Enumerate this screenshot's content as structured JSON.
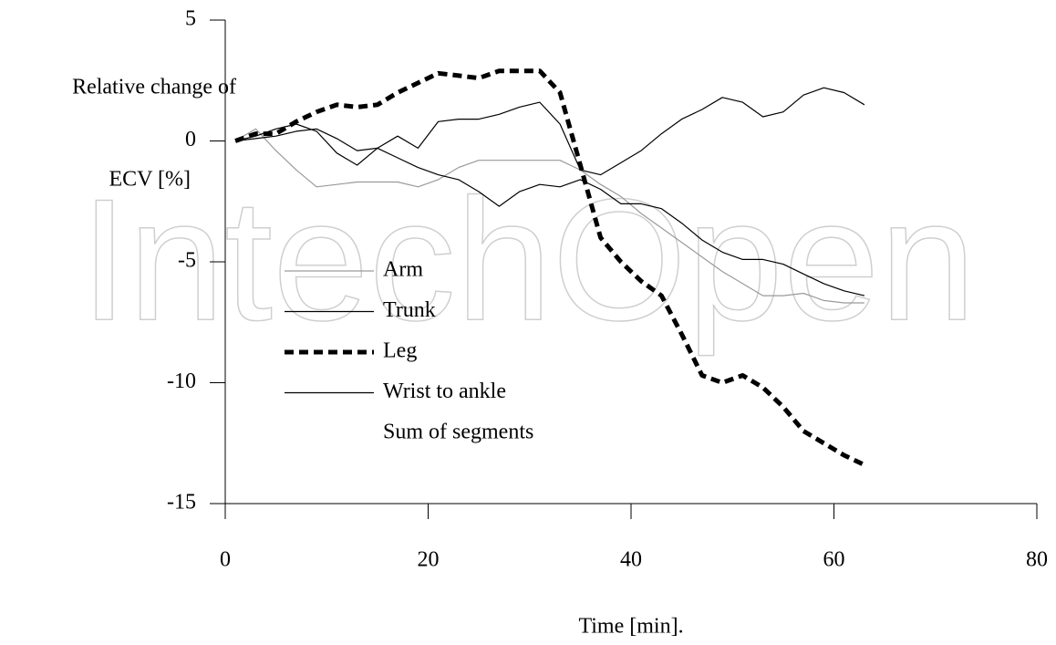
{
  "chart_data": {
    "type": "line",
    "watermark": "IntechOpen",
    "ylabel": [
      "Relative change of",
      "ECV [%]"
    ],
    "xlabel": "Time [min].",
    "x": [
      1,
      3,
      5,
      7,
      9,
      11,
      13,
      15,
      17,
      19,
      21,
      23,
      25,
      27,
      29,
      31,
      33,
      35,
      37,
      39,
      41,
      43,
      45,
      47,
      49,
      51,
      53,
      55,
      57,
      59,
      61,
      63
    ],
    "series": [
      {
        "name": "Arm",
        "color": "#9a9a9a",
        "width": 1.2,
        "dash": false,
        "values": [
          0,
          0.5,
          -0.4,
          -1.2,
          -1.9,
          -1.8,
          -1.7,
          -1.7,
          -1.7,
          -1.9,
          -1.6,
          -1.1,
          -0.8,
          -0.8,
          -0.8,
          -0.8,
          -0.8,
          -1.2,
          -1.8,
          -2.3,
          -3.0,
          -3.6,
          -4.2,
          -4.8,
          -5.4,
          -5.9,
          -6.4,
          -6.4,
          -6.3,
          -6.6,
          -6.7,
          -6.7
        ]
      },
      {
        "name": "Trunk",
        "color": "#000000",
        "width": 1.2,
        "dash": false,
        "values": [
          0,
          0.1,
          0.2,
          0.4,
          0.5,
          0.1,
          -0.4,
          -0.3,
          -0.7,
          -1.1,
          -1.4,
          -1.6,
          -2.1,
          -2.7,
          -2.1,
          -1.8,
          -1.9,
          -1.6,
          -2.0,
          -2.6,
          -2.6,
          -2.8,
          -3.4,
          -4.1,
          -4.6,
          -4.9,
          -4.9,
          -5.1,
          -5.5,
          -5.9,
          -6.2,
          -6.4
        ]
      },
      {
        "name": "Leg",
        "color": "#000000",
        "width": 5,
        "dash": true,
        "values": [
          0,
          0.3,
          0.3,
          0.8,
          1.2,
          1.5,
          1.4,
          1.5,
          2.0,
          2.4,
          2.8,
          2.7,
          2.6,
          2.9,
          2.9,
          2.9,
          2.0,
          -1.0,
          -4.0,
          -5.0,
          -5.8,
          -6.4,
          -8.0,
          -9.7,
          -10.0,
          -9.7,
          -10.2,
          -11.0,
          -12.0,
          -12.5,
          -13.0,
          -13.4
        ]
      },
      {
        "name": "Wrist to ankle",
        "color": "#000000",
        "width": 1.2,
        "dash": false,
        "values": [
          0,
          0.2,
          0.5,
          0.7,
          0.4,
          -0.5,
          -1.0,
          -0.3,
          0.2,
          -0.3,
          0.8,
          0.9,
          0.9,
          1.1,
          1.4,
          1.6,
          0.7,
          -1.2,
          -1.4,
          -0.9,
          -0.4,
          0.3,
          0.9,
          1.3,
          1.8,
          1.6,
          1.0,
          1.2,
          1.9,
          2.2,
          2.0,
          1.5
        ]
      },
      {
        "name": "Sum of segments",
        "color": "#ffffff",
        "width": 1.2,
        "dash": false,
        "values": [
          null,
          null,
          null,
          null,
          null,
          null,
          null,
          null,
          null,
          null,
          null,
          null,
          null,
          null,
          null,
          null,
          null,
          null,
          null,
          null,
          null,
          null,
          null,
          null,
          null,
          null,
          null,
          null,
          null,
          null,
          null,
          null
        ]
      }
    ],
    "xlim": [
      0,
      80
    ],
    "xticks": [
      0,
      20,
      40,
      60,
      80
    ],
    "ylim": [
      -15,
      5
    ],
    "yticks": [
      -15,
      -10,
      -5,
      0,
      5
    ],
    "grid": false
  }
}
